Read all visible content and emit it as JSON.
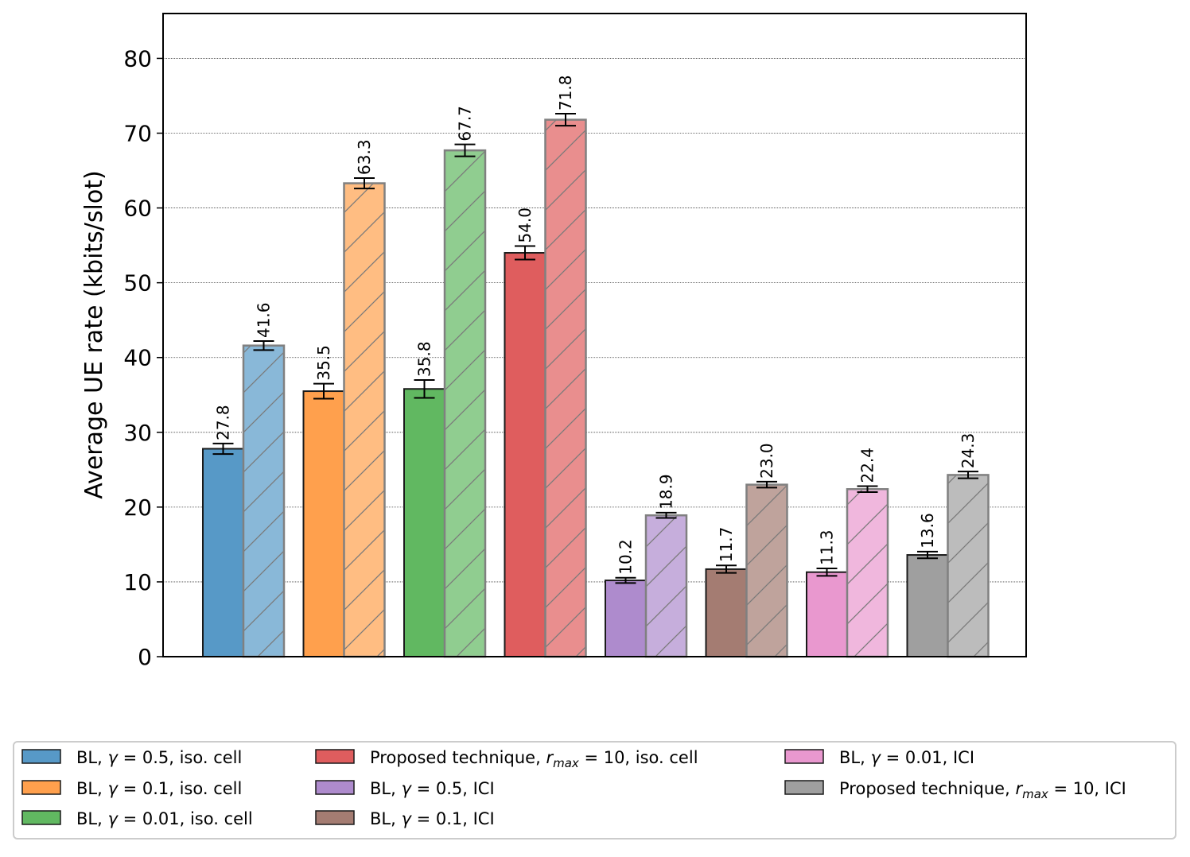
{
  "chart_data": {
    "type": "bar",
    "title": "",
    "xlabel": "",
    "ylabel": "Average UE rate (kbits/slot)",
    "ylim": [
      0,
      86
    ],
    "yticks": [
      0,
      10,
      20,
      30,
      40,
      50,
      60,
      70,
      80
    ],
    "grid": "horizontal dotted",
    "legend_position": "bottom",
    "groups": [
      {
        "color": "#5799c7",
        "errors": [
          0.7,
          0.6
        ],
        "values": [
          27.8,
          41.6
        ],
        "labels": [
          "27.8",
          "41.6"
        ]
      },
      {
        "color": "#ffa04d",
        "errors": [
          1.0,
          0.7
        ],
        "values": [
          35.5,
          63.3
        ],
        "labels": [
          "35.5",
          "63.3"
        ]
      },
      {
        "color": "#61b861",
        "errors": [
          1.2,
          0.8
        ],
        "values": [
          35.8,
          67.7
        ],
        "labels": [
          "35.8",
          "67.7"
        ]
      },
      {
        "color": "#df5d5e",
        "errors": [
          0.9,
          0.8
        ],
        "values": [
          54.0,
          71.8
        ],
        "labels": [
          "54.0",
          "71.8"
        ]
      },
      {
        "color": "#ae8bcd",
        "errors": [
          0.35,
          0.35
        ],
        "values": [
          10.2,
          18.9
        ],
        "labels": [
          "10.2",
          "18.9"
        ]
      },
      {
        "color": "#a47c72",
        "errors": [
          0.5,
          0.4
        ],
        "values": [
          11.7,
          23.0
        ],
        "labels": [
          "11.7",
          "23.0"
        ]
      },
      {
        "color": "#e998cf",
        "errors": [
          0.5,
          0.4
        ],
        "values": [
          11.3,
          22.4
        ],
        "labels": [
          "11.3",
          "22.4"
        ]
      },
      {
        "color": "#9f9f9f",
        "errors": [
          0.45,
          0.45
        ],
        "values": [
          13.6,
          24.3
        ],
        "labels": [
          "13.6",
          "24.3"
        ]
      }
    ],
    "legend": [
      {
        "pre": "BL, ",
        "sym": "γ",
        "post": " = 0.5, iso. cell",
        "color": "#5799c7"
      },
      {
        "pre": "BL, ",
        "sym": "γ",
        "post": " = 0.1, iso. cell",
        "color": "#ffa04d"
      },
      {
        "pre": "BL, ",
        "sym": "γ",
        "post": " = 0.01, iso. cell",
        "color": "#61b861"
      },
      {
        "pre": "Proposed technique, ",
        "sym": "r",
        "sub": "max",
        "post": " = 10, iso. cell",
        "color": "#df5d5e"
      },
      {
        "pre": "BL, ",
        "sym": "γ",
        "post": " = 0.5, ICI",
        "color": "#ae8bcd"
      },
      {
        "pre": "BL, ",
        "sym": "γ",
        "post": " = 0.1, ICI",
        "color": "#a47c72"
      },
      {
        "pre": "BL, ",
        "sym": "γ",
        "post": " = 0.01, ICI",
        "color": "#e998cf"
      },
      {
        "pre": "Proposed technique, ",
        "sym": "r",
        "sub": "max",
        "post": " = 10, ICI",
        "color": "#9f9f9f"
      }
    ]
  }
}
